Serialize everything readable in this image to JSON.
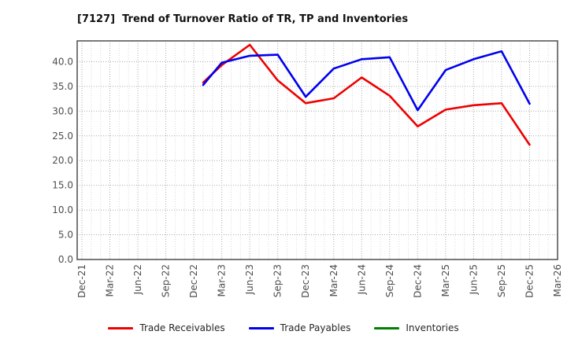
{
  "chart_data": {
    "type": "line",
    "title": "[7127]  Trend of Turnover Ratio of TR, TP and Inventories",
    "x_tick_labels": [
      "Dec-21",
      "Mar-22",
      "Jun-22",
      "Sep-22",
      "Dec-22",
      "Mar-23",
      "Jun-23",
      "Sep-23",
      "Dec-23",
      "Mar-24",
      "Jun-24",
      "Sep-24",
      "Dec-24",
      "Mar-25",
      "Jun-25",
      "Sep-25",
      "Dec-25",
      "Mar-26"
    ],
    "x_tick_months": [
      0,
      3,
      6,
      9,
      12,
      15,
      18,
      21,
      24,
      27,
      30,
      33,
      36,
      39,
      42,
      45,
      48,
      51
    ],
    "y_tick_labels": [
      "0.0",
      "5.0",
      "10.0",
      "15.0",
      "20.0",
      "25.0",
      "30.0",
      "35.0",
      "40.0"
    ],
    "y_tick_values": [
      0,
      5,
      10,
      15,
      20,
      25,
      30,
      35,
      40
    ],
    "ylim": [
      0,
      44.2
    ],
    "xlim_months": [
      -0.5,
      51.2
    ],
    "grid": "dotted",
    "legend_position": "bottom-center",
    "x_point_labels": [
      "Jan-23",
      "Mar-23",
      "Jun-23",
      "Sep-23",
      "Dec-23",
      "Mar-24",
      "Jun-24",
      "Sep-24",
      "Dec-24",
      "Mar-25",
      "Jun-25",
      "Sep-25",
      "Dec-25"
    ],
    "series": [
      {
        "name": "Trade Receivables",
        "color": "#ee0000",
        "x_months": [
          13,
          15,
          18,
          21,
          24,
          27,
          30,
          33,
          36,
          39,
          42,
          45,
          48
        ],
        "values": [
          35.8,
          39.3,
          43.4,
          36.2,
          31.6,
          32.6,
          36.8,
          33.1,
          26.9,
          30.3,
          31.2,
          31.6,
          23.2
        ]
      },
      {
        "name": "Trade Payables",
        "color": "#0000ee",
        "x_months": [
          13,
          15,
          18,
          21,
          24,
          27,
          30,
          33,
          36,
          39,
          42,
          45,
          48
        ],
        "values": [
          35.3,
          39.8,
          41.2,
          41.4,
          32.9,
          38.6,
          40.5,
          40.9,
          30.2,
          38.3,
          40.5,
          42.1,
          31.5
        ]
      },
      {
        "name": "Inventories",
        "color": "#008000",
        "x_months": [],
        "values": []
      }
    ],
    "colors": {
      "frame": "#4d4d4d",
      "grid_minor": "#d9d9d9",
      "grid_major": "#ababab",
      "tick_label": "#4d4d4d",
      "title": "#111111"
    }
  }
}
